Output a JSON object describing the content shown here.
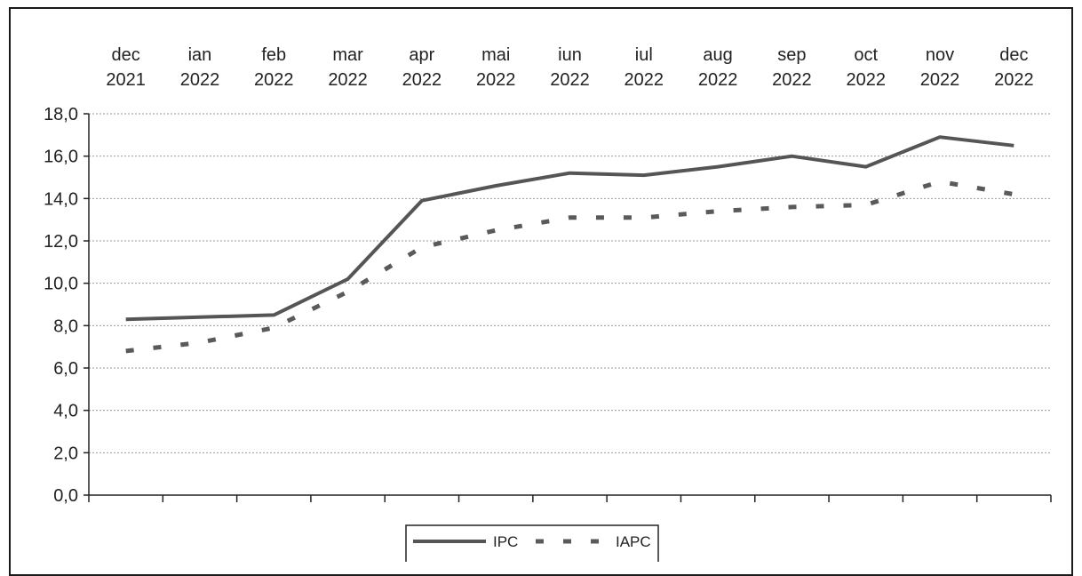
{
  "chart_data": {
    "type": "line",
    "categories": [
      [
        "dec",
        "2021"
      ],
      [
        "ian",
        "2022"
      ],
      [
        "feb",
        "2022"
      ],
      [
        "mar",
        "2022"
      ],
      [
        "apr",
        "2022"
      ],
      [
        "mai",
        "2022"
      ],
      [
        "iun",
        "2022"
      ],
      [
        "iul",
        "2022"
      ],
      [
        "aug",
        "2022"
      ],
      [
        "sep",
        "2022"
      ],
      [
        "oct",
        "2022"
      ],
      [
        "nov",
        "2022"
      ],
      [
        "dec",
        "2022"
      ]
    ],
    "y_ticks": [
      "0,0",
      "2,0",
      "4,0",
      "6,0",
      "8,0",
      "10,0",
      "12,0",
      "14,0",
      "16,0",
      "18,0"
    ],
    "ylim": [
      0,
      18
    ],
    "grid": true,
    "legend_position": "bottom-center",
    "series": [
      {
        "name": "IPC",
        "style": "solid",
        "color": "#555555",
        "values": [
          8.3,
          8.4,
          8.5,
          10.2,
          13.9,
          14.6,
          15.2,
          15.1,
          15.5,
          16.0,
          15.5,
          16.9,
          16.5
        ]
      },
      {
        "name": "IAPC",
        "style": "dashed",
        "color": "#555555",
        "values": [
          6.8,
          7.2,
          7.9,
          9.6,
          11.7,
          12.5,
          13.1,
          13.1,
          13.4,
          13.6,
          13.7,
          14.8,
          14.2
        ]
      }
    ]
  }
}
